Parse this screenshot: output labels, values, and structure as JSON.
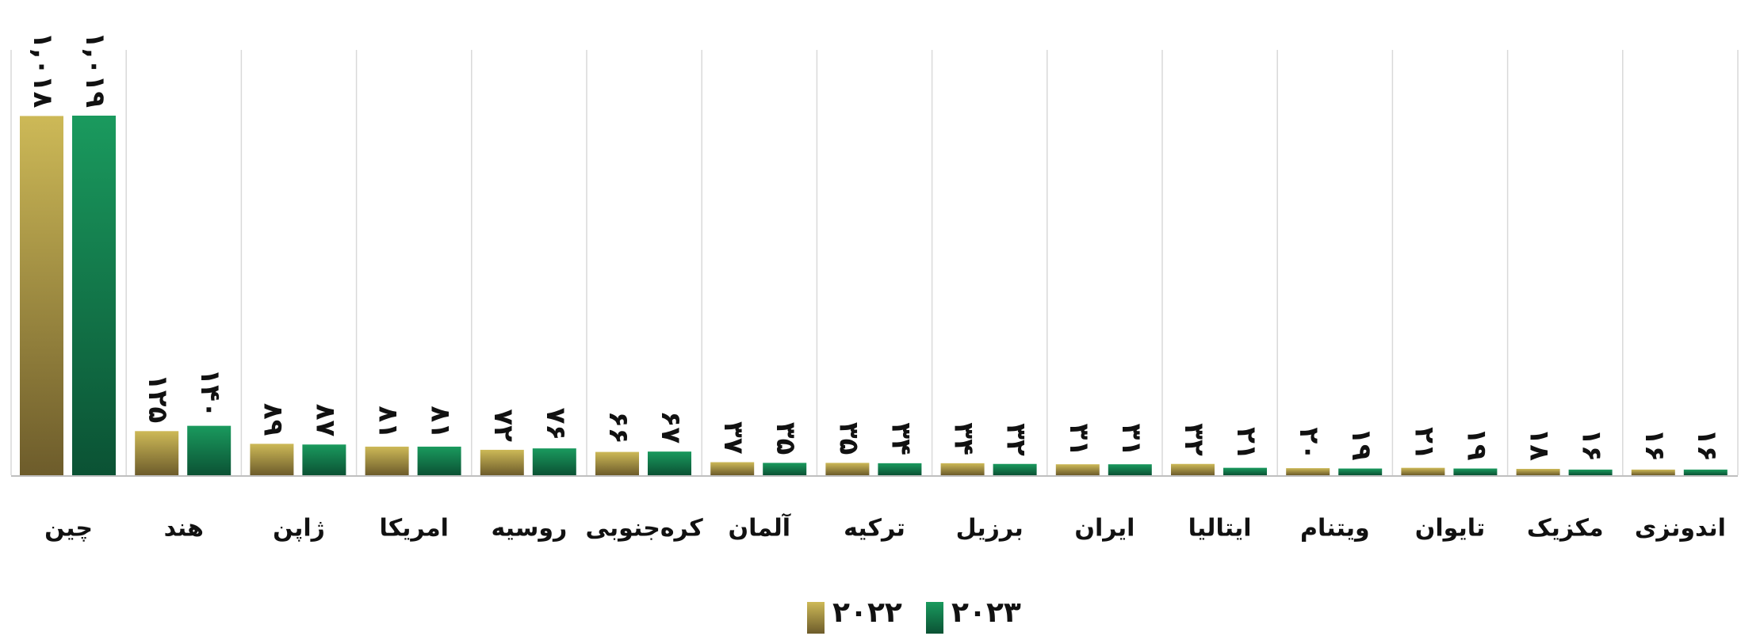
{
  "chart_data": {
    "type": "bar",
    "categories": [
      "چین",
      "هند",
      "ژاپن",
      "امریکا",
      "روسیه",
      "کره‌جنوبی",
      "آلمان",
      "ترکیه",
      "برزیل",
      "ایران",
      "ایتالیا",
      "ویتنام",
      "تایوان",
      "مکزیک",
      "اندونزی"
    ],
    "series": [
      {
        "name": "۲۰۲۲",
        "color": "#b8a448",
        "values": [
          1018,
          125,
          89,
          81,
          72,
          66,
          37,
          35,
          34,
          31,
          32,
          20,
          21,
          18,
          16
        ],
        "value_labels": [
          "۱,۰۱۸",
          "۱۲۵",
          "۸۹",
          "۸۱",
          "۷۲",
          "۶۶",
          "۳۷",
          "۳۵",
          "۳۴",
          "۳۱",
          "۳۲",
          "۲۰",
          "۲۱",
          "۱۸",
          "۱۶"
        ]
      },
      {
        "name": "۲۰۲۳",
        "color": "#137a4a",
        "values": [
          1019,
          140,
          87,
          81,
          76,
          67,
          35,
          34,
          32,
          31,
          21,
          19,
          19,
          16,
          16
        ],
        "value_labels": [
          "۱,۰۱۹",
          "۱۴۰",
          "۸۷",
          "۸۱",
          "۷۶",
          "۶۷",
          "۳۵",
          "۳۴",
          "۳۲",
          "۳۱",
          "۲۱",
          "۱۹",
          "۱۹",
          "۱۶",
          "۱۶"
        ]
      }
    ],
    "legend": "bottom"
  }
}
